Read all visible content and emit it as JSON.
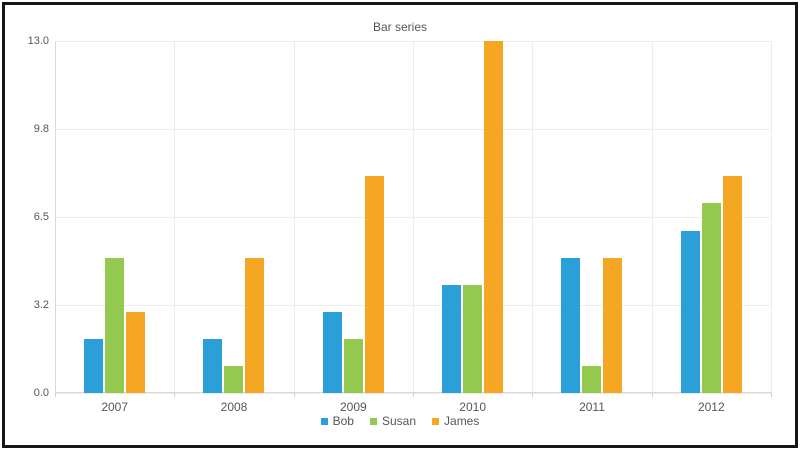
{
  "chart_data": {
    "type": "bar",
    "title": "Bar series",
    "categories": [
      "2007",
      "2008",
      "2009",
      "2010",
      "2011",
      "2012"
    ],
    "series": [
      {
        "name": "Bob",
        "color": "#2B9FD8",
        "values": [
          2,
          2,
          3,
          4,
          5,
          6
        ]
      },
      {
        "name": "Susan",
        "color": "#93C94E",
        "values": [
          5,
          1,
          2,
          4,
          1,
          7
        ]
      },
      {
        "name": "James",
        "color": "#F5A623",
        "values": [
          3,
          5,
          8,
          13,
          5,
          8
        ]
      }
    ],
    "ylim": [
      0,
      13
    ],
    "yticks": [
      {
        "value": 0,
        "label": "0.0"
      },
      {
        "value": 3.25,
        "label": "3.2"
      },
      {
        "value": 6.5,
        "label": "6.5"
      },
      {
        "value": 9.75,
        "label": "9.8"
      },
      {
        "value": 13,
        "label": "13.0"
      }
    ],
    "grid": true,
    "legend_position": "bottom"
  }
}
